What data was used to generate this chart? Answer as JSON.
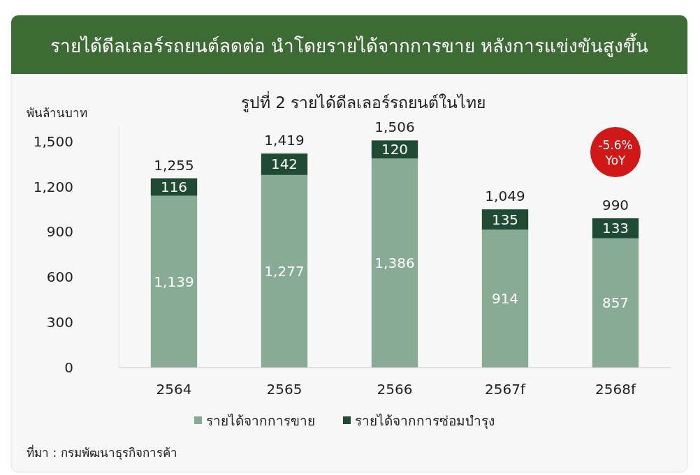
{
  "chart_data": {
    "type": "bar",
    "title": "รายได้ดีลเลอร์รถยนต์ลดต่อ นำโดยรายได้จากการขาย หลังการแข่งขันสูงขึ้น",
    "subtitle": "รูปที่ 2 รายได้ดีลเลอร์รถยนต์ในไทย",
    "ylabel": "พันล้านบาท",
    "categories": [
      "2564",
      "2565",
      "2566",
      "2567f",
      "2568f"
    ],
    "stacked": true,
    "series": [
      {
        "name": "รายได้จากการขาย",
        "color": "#87ab94",
        "values": [
          1139,
          1277,
          1386,
          914,
          857
        ],
        "value_labels": [
          "1,139",
          "1,277",
          "1,386",
          "914",
          "857"
        ]
      },
      {
        "name": "รายได้จากการซ่อมบำรุง",
        "color": "#1f4b34",
        "values": [
          116,
          142,
          120,
          135,
          133
        ],
        "value_labels": [
          "116",
          "142",
          "120",
          "135",
          "133"
        ]
      }
    ],
    "totals": [
      "1,255",
      "1,419",
      "1,506",
      "1,049",
      "990"
    ],
    "ylim": [
      0,
      1600
    ],
    "yticks": [
      0,
      300,
      600,
      900,
      {
        "value": 1200,
        "label": "1,200"
      },
      {
        "value": 1500,
        "label": "1,500"
      }
    ],
    "grid": false,
    "legend": "bottom",
    "annotations": [
      "-5.6% YoY",
      "ที่มา : กรมพัฒนาธุรกิจการค้า"
    ]
  }
}
